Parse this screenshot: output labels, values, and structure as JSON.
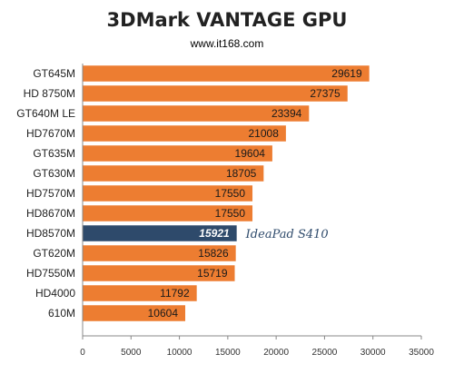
{
  "chart_data": {
    "type": "bar",
    "orientation": "horizontal",
    "title": "3DMark VANTAGE GPU",
    "subtitle": "www.it168.com",
    "categories": [
      "GT645M",
      "HD 8750M",
      "GT640M LE",
      "HD7670M",
      "GT635M",
      "GT630M",
      "HD7570M",
      "HD8670M",
      "HD8570M",
      "GT620M",
      "HD7550M",
      "HD4000",
      "610M"
    ],
    "values": [
      29619,
      27375,
      23394,
      21008,
      19604,
      18705,
      17550,
      17550,
      15921,
      15826,
      15719,
      11792,
      10604
    ],
    "value_labels": [
      "29619",
      "27375",
      "23394",
      "21008",
      "19604",
      "18705",
      "17550",
      "17550",
      "15921",
      "15826",
      "15719",
      "11792",
      "10604"
    ],
    "highlight_index": 8,
    "annotation": "IdeaPad S410",
    "xlim": [
      0,
      35000
    ],
    "xticks": [
      0,
      5000,
      10000,
      15000,
      20000,
      25000,
      30000,
      35000
    ],
    "xtick_labels": [
      "0",
      "5000",
      "10000",
      "15000",
      "20000",
      "25000",
      "30000",
      "35000"
    ],
    "grid": false,
    "legend": false,
    "colors": {
      "bar": "#ed7d31",
      "highlight": "#2e4a6b",
      "annotation_text": "#2e4a6b",
      "axis": "#888888"
    }
  }
}
